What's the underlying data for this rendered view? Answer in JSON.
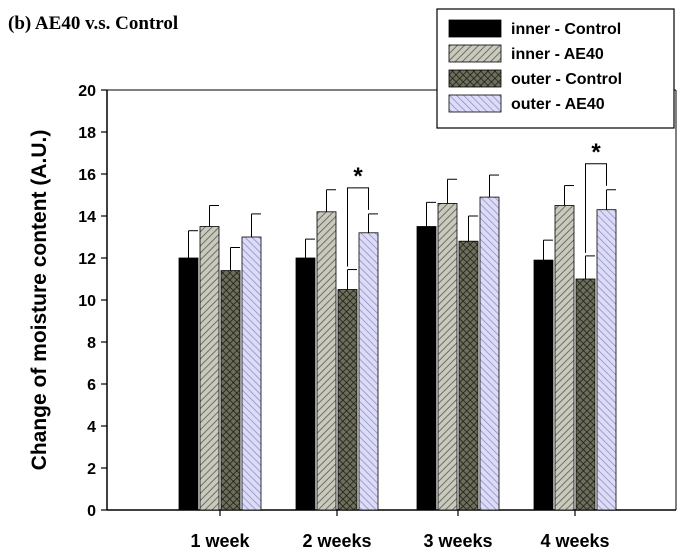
{
  "panel_title": "(b) AE40 v.s. Control",
  "chart_data": {
    "type": "bar",
    "categories": [
      "1 week",
      "2 weeks",
      "3 weeks",
      "4 weeks"
    ],
    "series": [
      {
        "name": "inner - Control",
        "values": [
          12.0,
          12.0,
          13.5,
          11.9
        ],
        "errors": [
          1.3,
          0.9,
          1.15,
          0.95
        ],
        "pattern": "solid",
        "color": "#000000"
      },
      {
        "name": "inner - AE40",
        "values": [
          13.5,
          14.2,
          14.6,
          14.5
        ],
        "errors": [
          1.0,
          1.05,
          1.15,
          0.95
        ],
        "pattern": "diag-hatch",
        "color": "#8c8c80"
      },
      {
        "name": "outer - Control",
        "values": [
          11.4,
          10.5,
          12.8,
          11.0
        ],
        "errors": [
          1.1,
          0.95,
          1.2,
          1.1
        ],
        "pattern": "cross-hatch",
        "color": "#3d3d2e"
      },
      {
        "name": "outer - AE40",
        "values": [
          13.0,
          13.2,
          14.9,
          14.3
        ],
        "errors": [
          1.1,
          0.9,
          1.05,
          0.95
        ],
        "pattern": "back-hatch",
        "color": "#c8c8f0"
      }
    ],
    "ylabel": "Change of moisture content (A.U.)",
    "xlabel": "",
    "ylim": [
      0,
      20
    ],
    "yticks": [
      "0",
      "2",
      "4",
      "6",
      "8",
      "10",
      "12",
      "14",
      "16",
      "18",
      "20"
    ],
    "legend_position": "top-right",
    "significance": [
      {
        "category": "2 weeks",
        "between": [
          "outer - Control",
          "outer - AE40"
        ],
        "label": "*"
      },
      {
        "category": "4 weeks",
        "between": [
          "outer - Control",
          "outer - AE40"
        ],
        "label": "*"
      }
    ]
  }
}
